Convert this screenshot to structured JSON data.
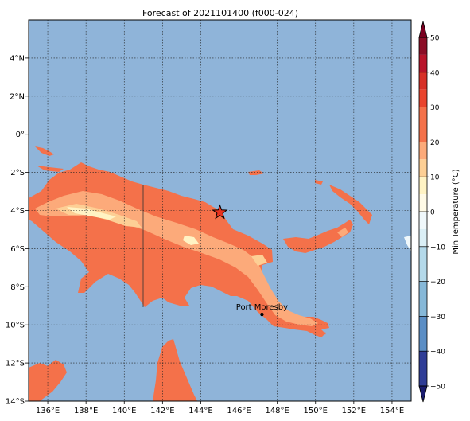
{
  "map": {
    "title": "Forecast of 2021101400 (f000-024)",
    "lon_range": [
      135,
      155
    ],
    "lat_range": [
      -14,
      6
    ],
    "lon_ticks": [
      {
        "v": 136,
        "label": "136°E"
      },
      {
        "v": 138,
        "label": "138°E"
      },
      {
        "v": 140,
        "label": "140°E"
      },
      {
        "v": 142,
        "label": "142°E"
      },
      {
        "v": 144,
        "label": "144°E"
      },
      {
        "v": 146,
        "label": "146°E"
      },
      {
        "v": 148,
        "label": "148°E"
      },
      {
        "v": 150,
        "label": "150°E"
      },
      {
        "v": 152,
        "label": "152°E"
      },
      {
        "v": 154,
        "label": "154°E"
      }
    ],
    "lat_ticks": [
      {
        "v": 4,
        "label": "4°N"
      },
      {
        "v": 2,
        "label": "2°N"
      },
      {
        "v": 0,
        "label": "0°"
      },
      {
        "v": -2,
        "label": "2°S"
      },
      {
        "v": -4,
        "label": "4°S"
      },
      {
        "v": -6,
        "label": "6°S"
      },
      {
        "v": -8,
        "label": "8°S"
      },
      {
        "v": -10,
        "label": "10°S"
      },
      {
        "v": -12,
        "label": "12°S"
      },
      {
        "v": -14,
        "label": "14°S"
      }
    ],
    "gridlines": "dotted",
    "ocean_color": "#8fb4d9",
    "land_color": "#f4714a",
    "marker": {
      "type": "star",
      "lon": 145.0,
      "lat": -4.1,
      "color": "#e8321e"
    },
    "city": {
      "name": "Port Moresby",
      "lon": 147.2,
      "lat": -9.45
    }
  },
  "colorbar": {
    "label": "Min Temperature (°C)",
    "ticks": [
      {
        "v": 50,
        "label": "50"
      },
      {
        "v": 40,
        "label": "40"
      },
      {
        "v": 30,
        "label": "30"
      },
      {
        "v": 20,
        "label": "20"
      },
      {
        "v": 10,
        "label": "10"
      },
      {
        "v": 0,
        "label": "0"
      },
      {
        "v": -10,
        "label": "−10"
      },
      {
        "v": -20,
        "label": "−20"
      },
      {
        "v": -30,
        "label": "−30"
      },
      {
        "v": -40,
        "label": "−40"
      },
      {
        "v": -50,
        "label": "−50"
      }
    ],
    "levels": [
      {
        "from": 45,
        "to": 50,
        "color": "#8b0d26"
      },
      {
        "from": 40,
        "to": 45,
        "color": "#b8142a"
      },
      {
        "from": 35,
        "to": 40,
        "color": "#d73027"
      },
      {
        "from": 30,
        "to": 35,
        "color": "#e9442d"
      },
      {
        "from": 20,
        "to": 30,
        "color": "#f4714a"
      },
      {
        "from": 15,
        "to": 20,
        "color": "#fcaa7a"
      },
      {
        "from": 10,
        "to": 15,
        "color": "#fdcf95"
      },
      {
        "from": 5,
        "to": 10,
        "color": "#fff3c4"
      },
      {
        "from": 0,
        "to": 5,
        "color": "#fffae6"
      },
      {
        "from": -5,
        "to": 0,
        "color": "#f0f8fb"
      },
      {
        "from": -10,
        "to": -5,
        "color": "#dbeff6"
      },
      {
        "from": -20,
        "to": -10,
        "color": "#b4d9ea"
      },
      {
        "from": -30,
        "to": -20,
        "color": "#86b8d8"
      },
      {
        "from": -40,
        "to": -30,
        "color": "#5b8ec5"
      },
      {
        "from": -50,
        "to": -40,
        "color": "#2f3d96"
      }
    ],
    "over_color": "#7a0020",
    "under_color": "#1a1c6e"
  }
}
